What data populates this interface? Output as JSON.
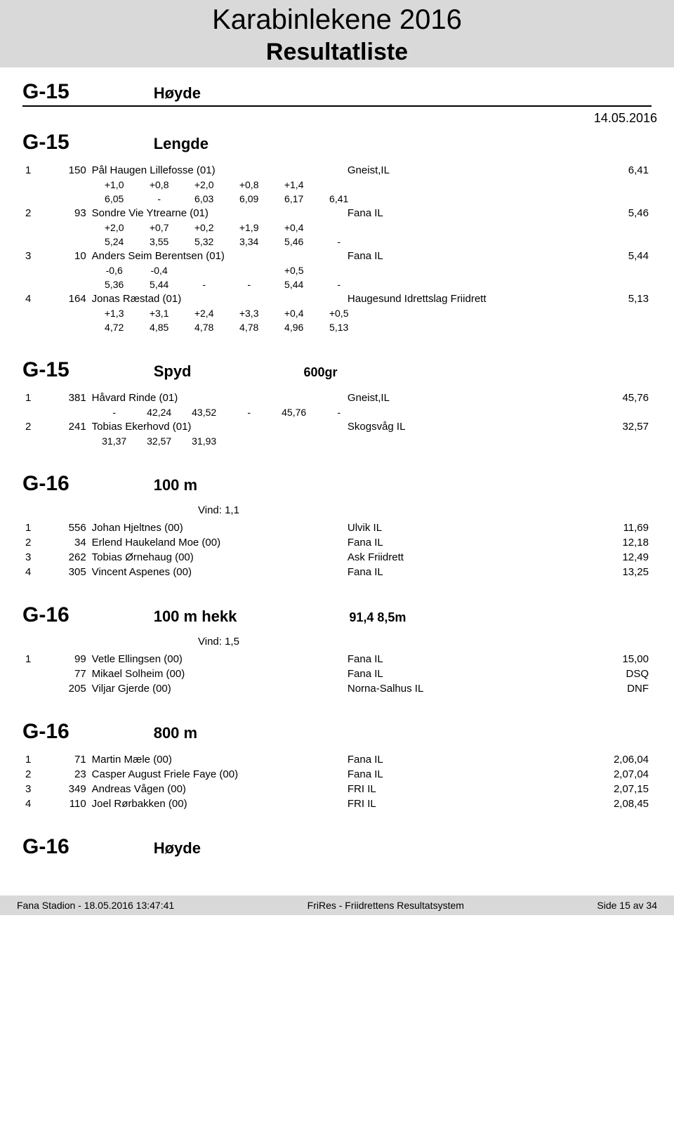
{
  "header": {
    "title": "Karabinlekene 2016",
    "subtitle": "Resultatliste",
    "date": "14.05.2016"
  },
  "top_category": {
    "cat": "G-15",
    "event": "Høyde"
  },
  "sections": [
    {
      "cat": "G-15",
      "event": "Lengde",
      "rows": [
        {
          "rank": "1",
          "bib": "150",
          "name": "Pål Haugen Lillefosse (01)",
          "club": "Gneist,IL",
          "result": "6,41",
          "d1": [
            "+1,0",
            "+0,8",
            "+2,0",
            "+0,8",
            "+1,4",
            ""
          ],
          "d2": [
            "6,05",
            "-",
            "6,03",
            "6,09",
            "6,17",
            "6,41"
          ]
        },
        {
          "rank": "2",
          "bib": "93",
          "name": "Sondre Vie Ytrearne (01)",
          "club": "Fana IL",
          "result": "5,46",
          "d1": [
            "+2,0",
            "+0,7",
            "+0,2",
            "+1,9",
            "+0,4",
            ""
          ],
          "d2": [
            "5,24",
            "3,55",
            "5,32",
            "3,34",
            "5,46",
            "-"
          ]
        },
        {
          "rank": "3",
          "bib": "10",
          "name": "Anders Seim Berentsen (01)",
          "club": "Fana IL",
          "result": "5,44",
          "d1": [
            "-0,6",
            "-0,4",
            "",
            "",
            "+0,5",
            ""
          ],
          "d2": [
            "5,36",
            "5,44",
            "-",
            "-",
            "5,44",
            "-"
          ]
        },
        {
          "rank": "4",
          "bib": "164",
          "name": "Jonas Ræstad (01)",
          "club": "Haugesund Idrettslag Friidrett",
          "result": "5,13",
          "d1": [
            "+1,3",
            "+3,1",
            "+2,4",
            "+3,3",
            "+0,4",
            "+0,5"
          ],
          "d2": [
            "4,72",
            "4,85",
            "4,78",
            "4,78",
            "4,96",
            "5,13"
          ]
        }
      ]
    },
    {
      "cat": "G-15",
      "event": "Spyd",
      "spec": "600gr",
      "rows": [
        {
          "rank": "1",
          "bib": "381",
          "name": "Håvard Rinde (01)",
          "club": "Gneist,IL",
          "result": "45,76",
          "d2": [
            "-",
            "42,24",
            "43,52",
            "-",
            "45,76",
            "-"
          ]
        },
        {
          "rank": "2",
          "bib": "241",
          "name": "Tobias Ekerhovd (01)",
          "club": "Skogsvåg IL",
          "result": "32,57",
          "d2": [
            "31,37",
            "32,57",
            "31,93",
            "",
            "",
            ""
          ]
        }
      ]
    },
    {
      "cat": "G-16",
      "event": "100 m",
      "wind": "Vind: 1,1",
      "rows": [
        {
          "rank": "1",
          "bib": "556",
          "name": "Johan Hjeltnes (00)",
          "club": "Ulvik IL",
          "result": "11,69"
        },
        {
          "rank": "2",
          "bib": "34",
          "name": "Erlend Haukeland Moe (00)",
          "club": "Fana IL",
          "result": "12,18"
        },
        {
          "rank": "3",
          "bib": "262",
          "name": "Tobias Ørnehaug (00)",
          "club": "Ask Friidrett",
          "result": "12,49"
        },
        {
          "rank": "4",
          "bib": "305",
          "name": "Vincent Aspenes (00)",
          "club": "Fana IL",
          "result": "13,25"
        }
      ]
    },
    {
      "cat": "G-16",
      "event": "100 m hekk",
      "spec": "91,4 8,5m",
      "wind": "Vind: 1,5",
      "rows": [
        {
          "rank": "1",
          "bib": "99",
          "name": "Vetle Ellingsen (00)",
          "club": "Fana IL",
          "result": "15,00"
        },
        {
          "rank": "",
          "bib": "77",
          "name": "Mikael Solheim (00)",
          "club": "Fana IL",
          "result": "DSQ"
        },
        {
          "rank": "",
          "bib": "205",
          "name": "Viljar Gjerde (00)",
          "club": "Norna-Salhus IL",
          "result": "DNF"
        }
      ]
    },
    {
      "cat": "G-16",
      "event": "800 m",
      "rows": [
        {
          "rank": "1",
          "bib": "71",
          "name": "Martin Mæle (00)",
          "club": "Fana IL",
          "result": "2,06,04"
        },
        {
          "rank": "2",
          "bib": "23",
          "name": "Casper August Friele Faye (00)",
          "club": "Fana IL",
          "result": "2,07,04"
        },
        {
          "rank": "3",
          "bib": "349",
          "name": "Andreas Vågen (00)",
          "club": "FRI IL",
          "result": "2,07,15"
        },
        {
          "rank": "4",
          "bib": "110",
          "name": "Joel Rørbakken (00)",
          "club": "FRI IL",
          "result": "2,08,45"
        }
      ]
    },
    {
      "cat": "G-16",
      "event": "Høyde",
      "rows": []
    }
  ],
  "footer": {
    "left": "Fana Stadion - 18.05.2016 13:47:41",
    "center": "FriRes - Friidrettens Resultatsystem",
    "right": "Side 15 av 34"
  }
}
